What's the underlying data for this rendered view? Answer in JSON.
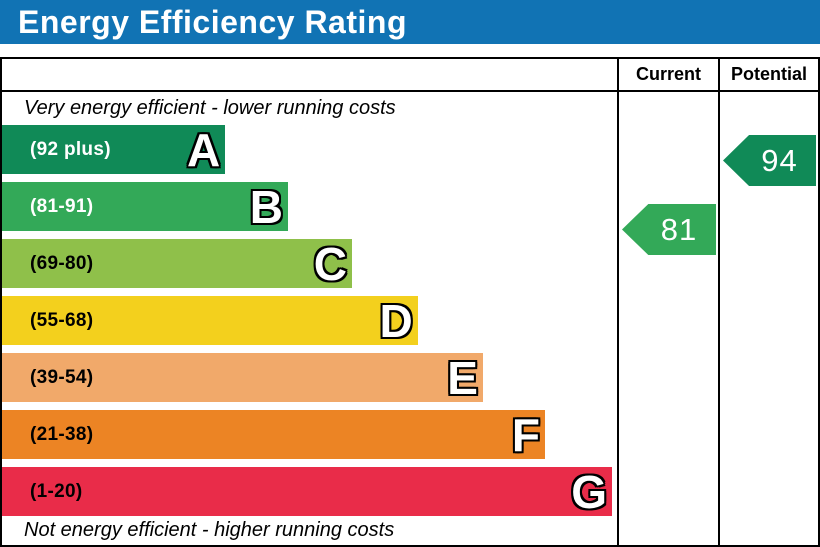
{
  "title": "Energy Efficiency Rating",
  "headers": {
    "current": "Current",
    "potential": "Potential"
  },
  "notes": {
    "top": "Very energy efficient - lower running costs",
    "bottom": "Not energy efficient - higher running costs"
  },
  "colors": {
    "title_bar_bg": "#1173b4",
    "title_text": "#ffffff",
    "border": "#000000"
  },
  "chart_data": {
    "type": "bar",
    "title": "Energy Efficiency Rating",
    "annotations": [
      "Very energy efficient - lower running costs",
      "Not energy efficient - higher running costs"
    ],
    "bands": [
      {
        "letter": "A",
        "range_label": "(92 plus)",
        "min": 92,
        "max": 100,
        "color": "#108a57",
        "label_color": "#ffffff",
        "bar_length_pct": 36.3
      },
      {
        "letter": "B",
        "range_label": "(81-91)",
        "min": 81,
        "max": 91,
        "color": "#33a958",
        "label_color": "#ffffff",
        "bar_length_pct": 46.5
      },
      {
        "letter": "C",
        "range_label": "(69-80)",
        "min": 69,
        "max": 80,
        "color": "#8fc04a",
        "label_color": "#000000",
        "bar_length_pct": 56.9
      },
      {
        "letter": "D",
        "range_label": "(55-68)",
        "min": 55,
        "max": 68,
        "color": "#f3d01d",
        "label_color": "#000000",
        "bar_length_pct": 67.6
      },
      {
        "letter": "E",
        "range_label": "(39-54)",
        "min": 39,
        "max": 54,
        "color": "#f1a96a",
        "label_color": "#000000",
        "bar_length_pct": 78.2
      },
      {
        "letter": "F",
        "range_label": "(21-38)",
        "min": 21,
        "max": 38,
        "color": "#ec8424",
        "label_color": "#000000",
        "bar_length_pct": 88.3
      },
      {
        "letter": "G",
        "range_label": "(1-20)",
        "min": 1,
        "max": 20,
        "color": "#e92c49",
        "label_color": "#000000",
        "bar_length_pct": 99.2
      }
    ],
    "current": {
      "value": 81,
      "band": "B",
      "color": "#33a958"
    },
    "potential": {
      "value": 94,
      "band": "A",
      "color": "#108a57"
    }
  }
}
